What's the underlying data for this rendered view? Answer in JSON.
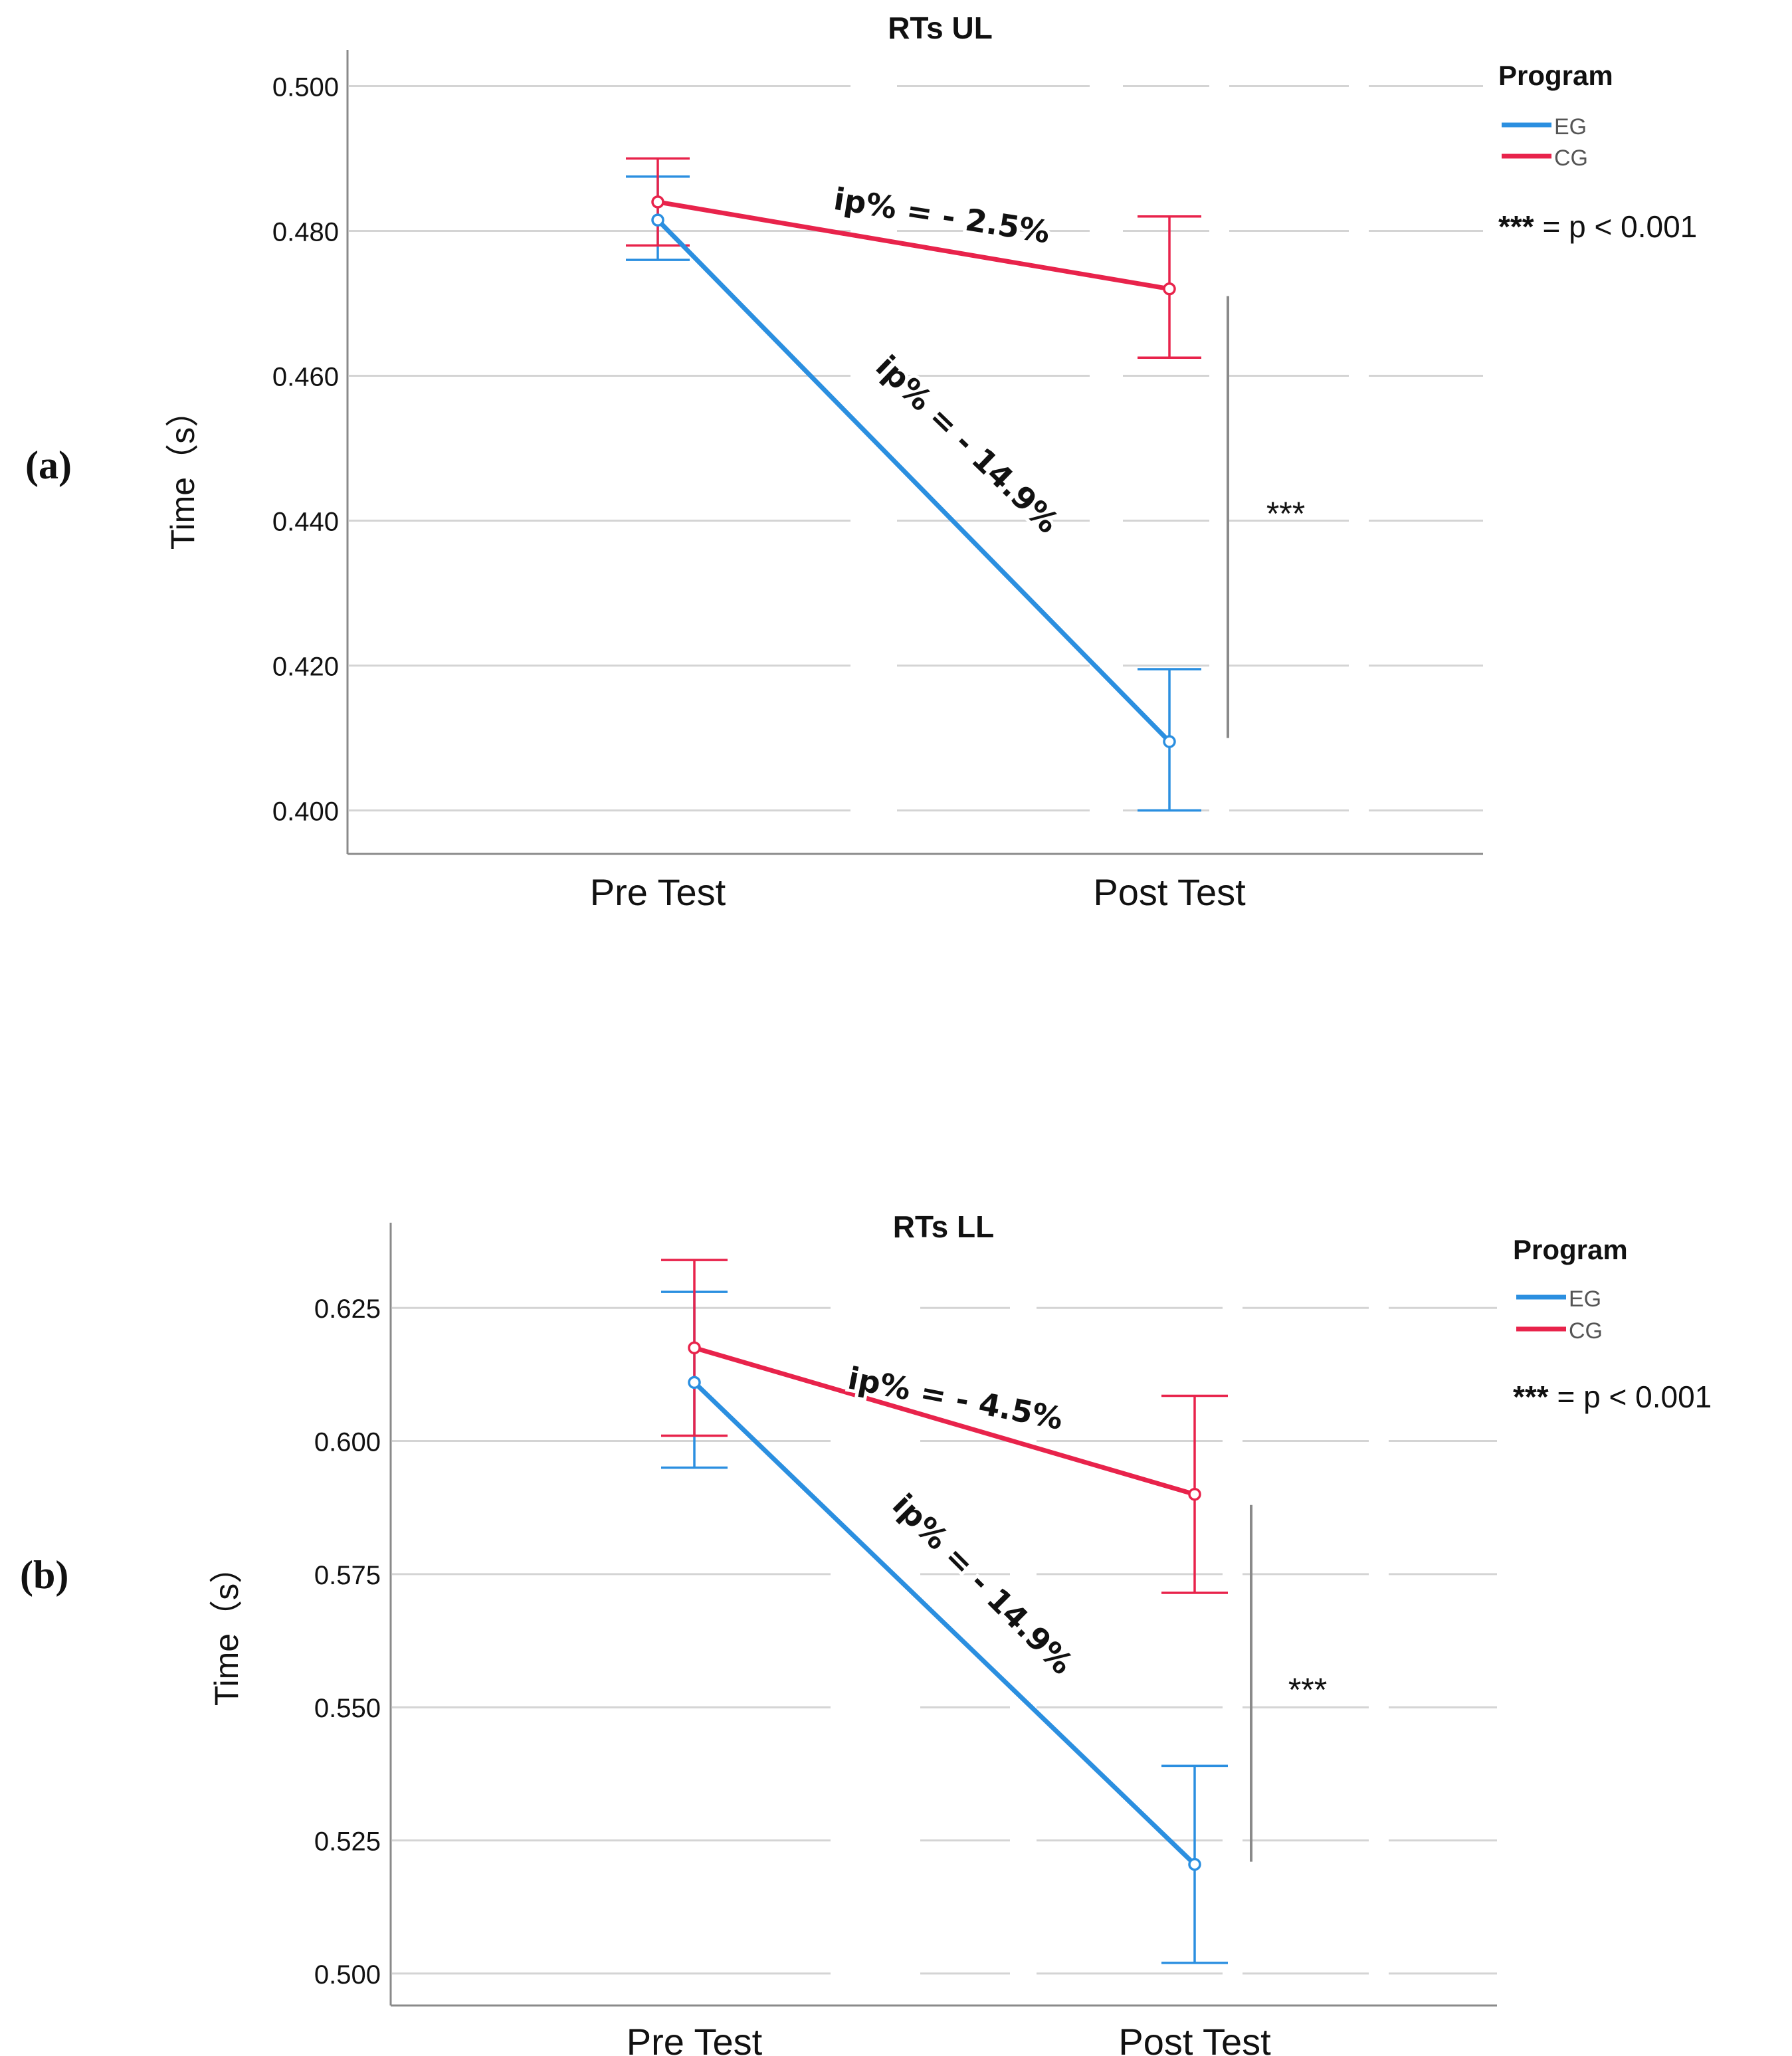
{
  "legend_title": "Program",
  "significance_note": {
    "stars": "***",
    "text": "= p < 0.001"
  },
  "colors": {
    "EG": "#2b8fe0",
    "CG": "#e8234b",
    "grid": "#d4d4d4",
    "axis": "#8a8a8a",
    "sigbar": "#8a8a8a",
    "text": "#111111"
  },
  "chart_data": [
    {
      "type": "line",
      "panel_label": "(a)",
      "title": "RTs UL",
      "ylabel": "Time（s）",
      "xlabel": "",
      "categories": [
        "Pre Test",
        "Post Test"
      ],
      "ylim": [
        0.394,
        0.505
      ],
      "yticks": [
        0.4,
        0.42,
        0.44,
        0.46,
        0.48,
        0.5
      ],
      "ytick_labels": [
        "0.400",
        "0.420",
        "0.440",
        "0.460",
        "0.480",
        "0.500"
      ],
      "legend_position": "top-right",
      "series": [
        {
          "name": "EG",
          "values": [
            0.4815,
            0.4095
          ],
          "err_low": [
            0.476,
            0.4
          ],
          "err_high": [
            0.4875,
            0.4195
          ]
        },
        {
          "name": "CG",
          "values": [
            0.484,
            0.472
          ],
          "err_low": [
            0.478,
            0.4625
          ],
          "err_high": [
            0.49,
            0.482
          ]
        }
      ],
      "annotations": [
        {
          "series": "CG",
          "text": "ip% = - 2.5%"
        },
        {
          "series": "EG",
          "text": "ip% = - 14.9%"
        }
      ],
      "significance": {
        "category": "Post Test",
        "stars": "***",
        "y_range": [
          0.41,
          0.471
        ]
      }
    },
    {
      "type": "line",
      "panel_label": "(b)",
      "title": "RTs LL",
      "ylabel": "Time（s）",
      "xlabel": "",
      "categories": [
        "Pre Test",
        "Post Test"
      ],
      "ylim": [
        0.494,
        0.641
      ],
      "yticks": [
        0.5,
        0.525,
        0.55,
        0.575,
        0.6,
        0.625
      ],
      "ytick_labels": [
        "0.500",
        "0.525",
        "0.550",
        "0.575",
        "0.600",
        "0.625"
      ],
      "legend_position": "top-right",
      "series": [
        {
          "name": "EG",
          "values": [
            0.611,
            0.5205
          ],
          "err_low": [
            0.595,
            0.502
          ],
          "err_high": [
            0.628,
            0.539
          ]
        },
        {
          "name": "CG",
          "values": [
            0.6175,
            0.59
          ],
          "err_low": [
            0.601,
            0.5715
          ],
          "err_high": [
            0.634,
            0.6085
          ]
        }
      ],
      "annotations": [
        {
          "series": "CG",
          "text": "ip% = - 4.5%"
        },
        {
          "series": "EG",
          "text": "ip% = - 14.9%"
        }
      ],
      "significance": {
        "category": "Post Test",
        "stars": "***",
        "y_range": [
          0.521,
          0.588
        ]
      }
    }
  ]
}
